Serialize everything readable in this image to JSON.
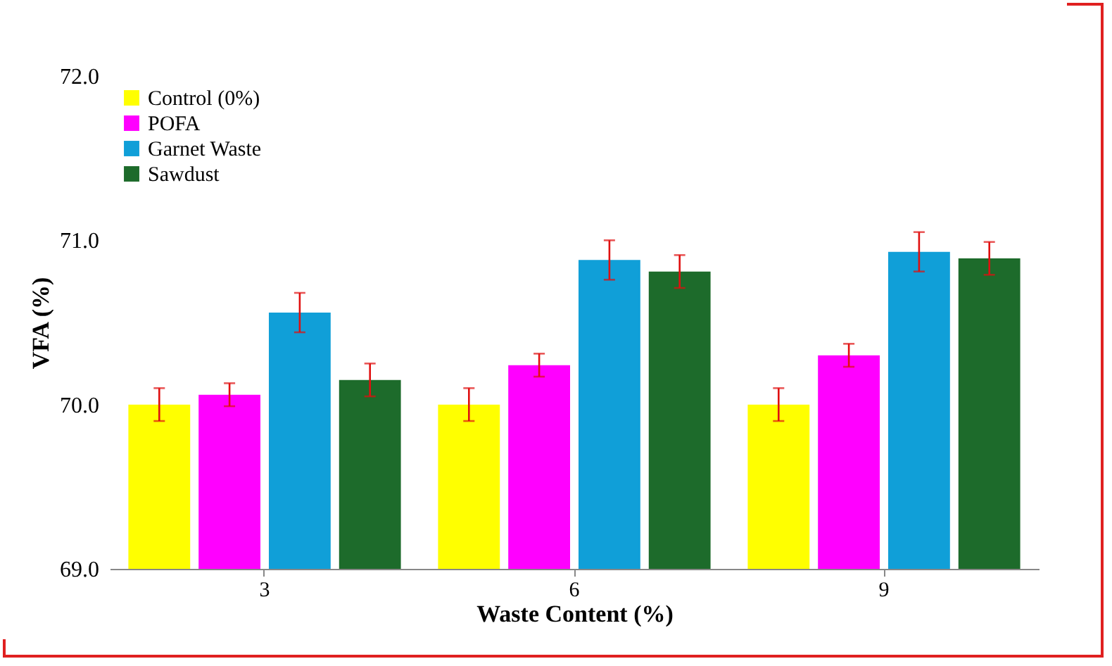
{
  "chart_data": {
    "type": "bar",
    "xlabel": "Waste Content (%)",
    "ylabel": "VFA (%)",
    "categories": [
      "3",
      "6",
      "9"
    ],
    "ylim": [
      69,
      72
    ],
    "yticks": [
      {
        "value": 69,
        "label": "69.0"
      },
      {
        "value": 70,
        "label": "70.0"
      },
      {
        "value": 71,
        "label": "71.0"
      },
      {
        "value": 72,
        "label": "72.0"
      }
    ],
    "grid": false,
    "legend": "top left",
    "series": [
      {
        "name": "Control (0%)",
        "color": "#ffff00",
        "values": [
          70.0,
          70.0,
          70.0
        ],
        "errors": [
          0.1,
          0.1,
          0.1
        ]
      },
      {
        "name": "POFA",
        "color": "#ff00ff",
        "values": [
          70.06,
          70.24,
          70.3
        ],
        "errors": [
          0.07,
          0.07,
          0.07
        ]
      },
      {
        "name": "Garnet Waste",
        "color": "#109fd8",
        "values": [
          70.56,
          70.88,
          70.93
        ],
        "errors": [
          0.12,
          0.12,
          0.12
        ]
      },
      {
        "name": "Sawdust",
        "color": "#1d6b2b",
        "values": [
          70.15,
          70.81,
          70.89
        ],
        "errors": [
          0.1,
          0.1,
          0.1
        ]
      }
    ]
  }
}
